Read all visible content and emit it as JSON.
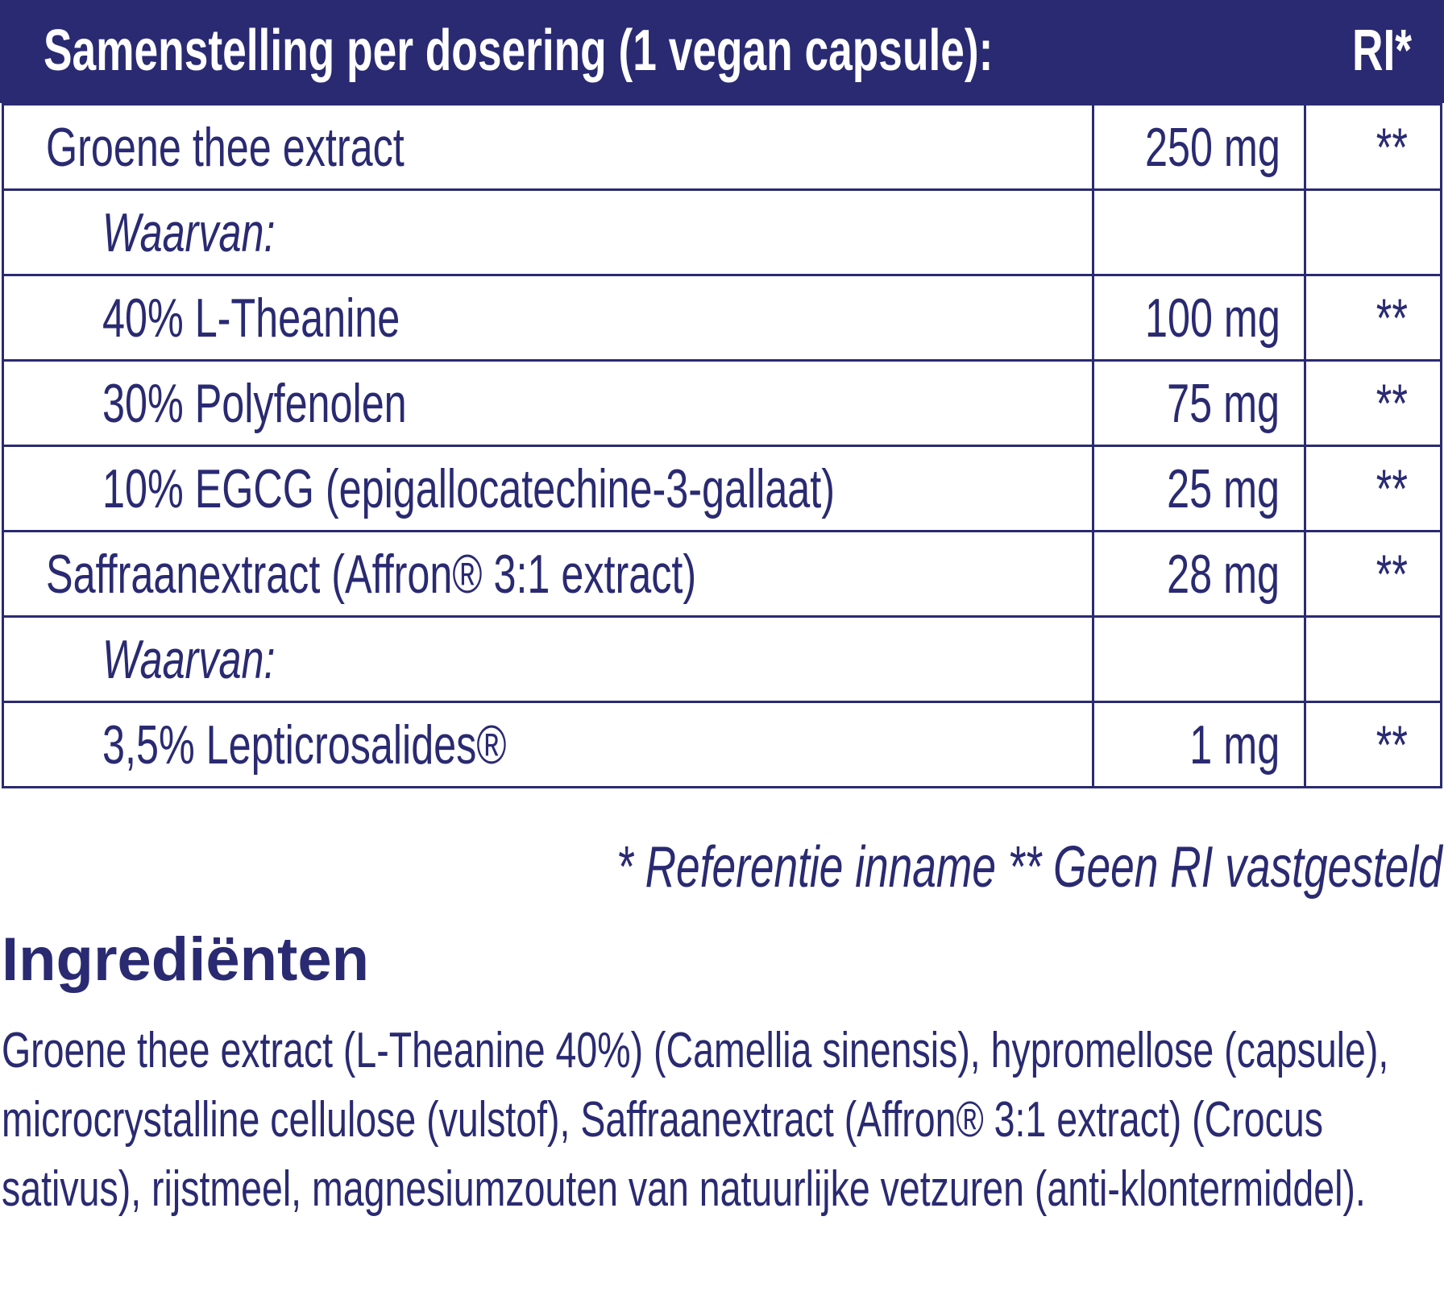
{
  "table": {
    "header": {
      "title": "Samenstelling per dosering (1 vegan capsule):",
      "ri": "RI*"
    },
    "rows": [
      {
        "name": "Groene thee extract",
        "amount": "250 mg",
        "ri": "**"
      },
      {
        "name": "Waarvan:",
        "amount": "",
        "ri": ""
      },
      {
        "name": "40% L-Theanine",
        "amount": "100 mg",
        "ri": "**"
      },
      {
        "name": "30% Polyfenolen",
        "amount": "75 mg",
        "ri": "**"
      },
      {
        "name": "10%  EGCG (epigallocatechine-3-gallaat)",
        "amount": "25 mg",
        "ri": "**"
      },
      {
        "name": "Saffraanextract (Affron® 3:1 extract)",
        "amount": "28 mg",
        "ri": "**"
      },
      {
        "name": "Waarvan:",
        "amount": "",
        "ri": ""
      },
      {
        "name": "3,5% Lepticrosalides®",
        "amount": "1 mg",
        "ri": "**"
      }
    ]
  },
  "footnote": "* Referentie inname  ** Geen RI vastgesteld",
  "ingredients": {
    "title": "Ingrediënten",
    "text": "Groene thee extract (L-Theanine 40%) (Camellia sinensis), hypromellose (capsule), microcrystalline cellulose (vulstof), Saffraanextract (Affron® 3:1 extract) (Crocus sativus), rijstmeel, magnesiumzouten van natuurlijke vetzuren (anti-klontermiddel)."
  }
}
